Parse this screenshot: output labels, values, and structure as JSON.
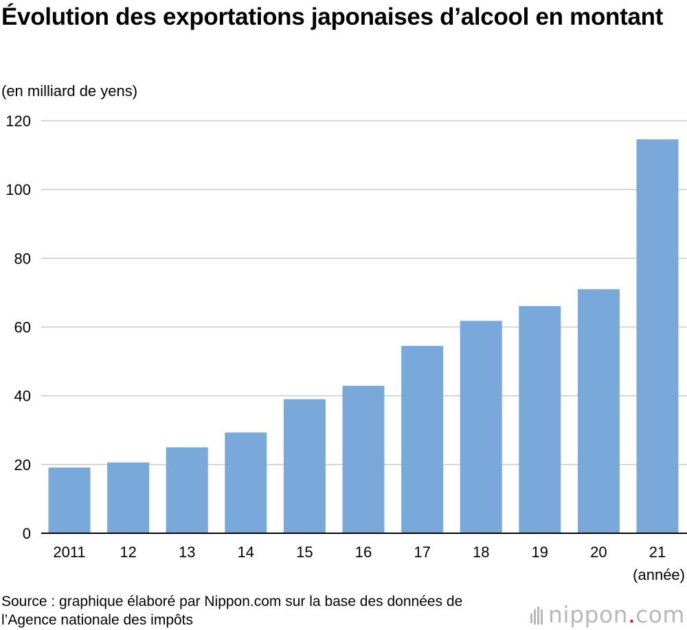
{
  "page": {
    "title": "Évolution des exportations japonaises d’alcool en montant",
    "unit_label": "(en milliard de yens)",
    "source": "Source : graphique élaboré par Nippon.com sur la base des données de l’Agence nationale des impôts",
    "brand": {
      "name": "nippon",
      "dot": ".",
      "suffix": "com"
    }
  },
  "colors": {
    "bar": "#79a9da",
    "grid": "#c9c9c9",
    "axis": "#000000",
    "brand_gray": "#b8b8b8",
    "brand_red": "#e60012"
  },
  "chart_data": {
    "type": "bar",
    "title": "Évolution des exportations japonaises d’alcool en montant",
    "ylabel": "(en milliard de yens)",
    "xlabel": "(année)",
    "categories": [
      "2011",
      "12",
      "13",
      "14",
      "15",
      "16",
      "17",
      "18",
      "19",
      "20",
      "21"
    ],
    "values": [
      19.1,
      20.6,
      25.0,
      29.3,
      39.0,
      42.9,
      54.5,
      61.8,
      66.1,
      71.0,
      114.6
    ],
    "ylim": [
      0,
      120
    ],
    "yticks": [
      0,
      20,
      40,
      60,
      80,
      100,
      120
    ],
    "grid": true,
    "legend": "none"
  }
}
